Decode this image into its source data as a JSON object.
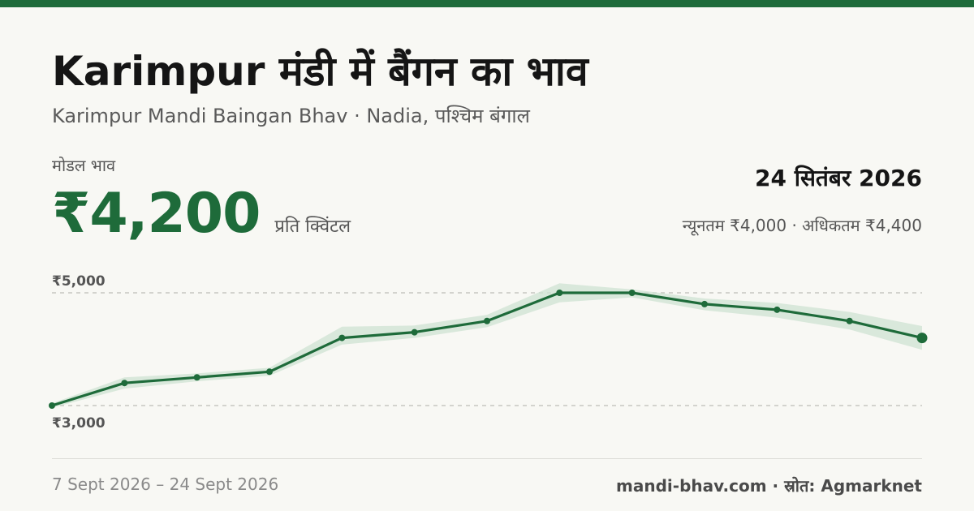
{
  "header": {
    "title": "Karimpur मंडी में बैंगन का भाव",
    "subtitle": "Karimpur Mandi Baingan Bhav · Nadia, पश्चिम बंगाल"
  },
  "summary": {
    "modal_label": "मोडल भाव",
    "modal_price": "₹4,200",
    "unit": "प्रति क्विंटल",
    "date": "24 सितंबर 2026",
    "min_max": "न्यूनतम ₹4,000 · अधिकतम ₹4,400"
  },
  "footer": {
    "date_range": "7 Sept 2026 – 24 Sept 2026",
    "source": "mandi-bhav.com · स्रोत: Agmarknet"
  },
  "colors": {
    "accent": "#1e6b3a",
    "band": "#cfe3d3",
    "grid": "#bdbdb6"
  },
  "chart_data": {
    "type": "line",
    "ytick_labels": [
      "₹5,000",
      "₹3,000"
    ],
    "yticks": [
      5000,
      3000
    ],
    "ylim": [
      3000,
      5000
    ],
    "grid": true,
    "series": [
      {
        "values": [
          3000,
          3400,
          3500,
          3600,
          4200,
          4300,
          4500,
          5000,
          5000,
          4800,
          4700,
          4500,
          4200
        ]
      }
    ],
    "band": {
      "lower": [
        2960,
        3300,
        3430,
        3530,
        4080,
        4200,
        4390,
        4830,
        4920,
        4690,
        4560,
        4350,
        3990
      ],
      "upper": [
        3040,
        3500,
        3570,
        3670,
        4400,
        4420,
        4610,
        5170,
        5060,
        4900,
        4820,
        4660,
        4410
      ]
    }
  }
}
